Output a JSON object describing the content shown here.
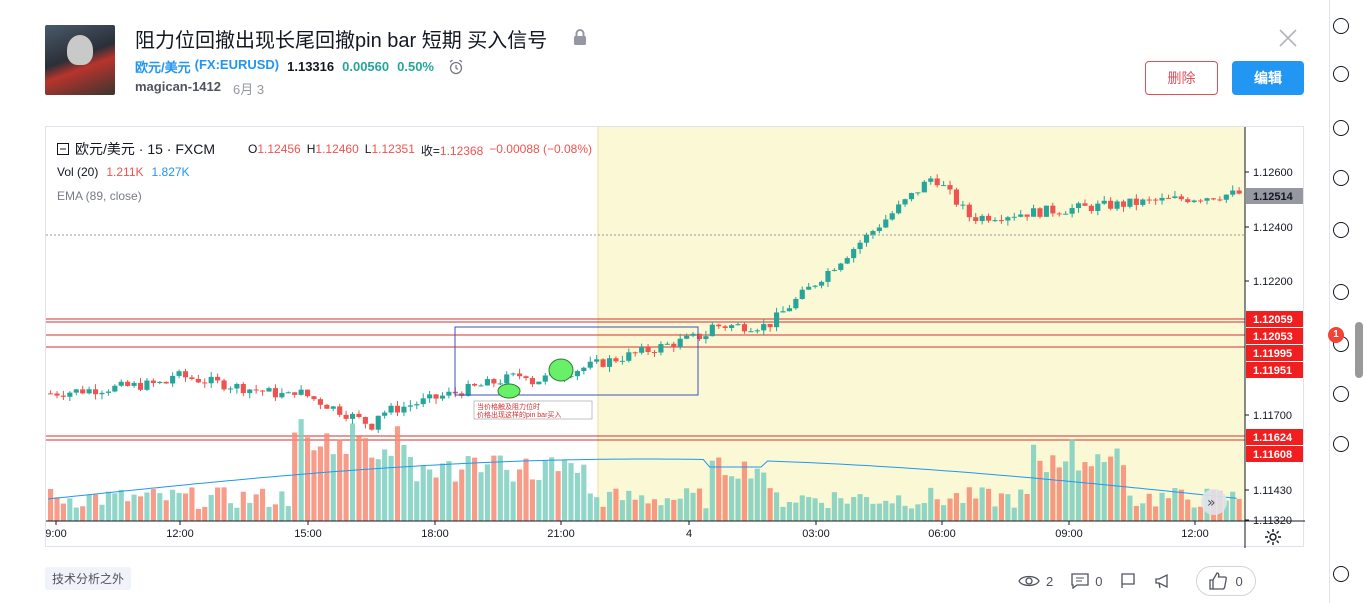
{
  "idea": {
    "title": "阻力位回撤出现长尾回撤pin bar 短期 买入信号",
    "symbol_name": "欧元/美元",
    "symbol_code": "(FX:EURUSD)",
    "price": "1.13316",
    "change": "0.00560",
    "change_pct": "0.50%",
    "author": "magican-1412",
    "date": "6月 3",
    "delete_label": "删除",
    "edit_label": "编辑"
  },
  "legend": {
    "symbol": "欧元/美元 · 15 · FXCM",
    "o_label": "O",
    "o": "1.12456",
    "h_label": "H",
    "h": "1.12460",
    "l_label": "L",
    "l": "1.12351",
    "c_label": "收=",
    "c": "1.12368",
    "chg": "−0.00088 (−0.08%)",
    "vol_label": "Vol (20)",
    "vol1": "1.211K",
    "vol2": "1.827K",
    "ema_label": "EMA (89, close)"
  },
  "chart_data": {
    "type": "candlestick",
    "x_ticks": [
      "9:00",
      "12:00",
      "15:00",
      "18:00",
      "21:00",
      "4",
      "03:00",
      "06:00",
      "09:00",
      "12:00"
    ],
    "y_ticks": [
      "1.12600",
      "1.12400",
      "1.12200",
      "1.11700",
      "1.11430",
      "1.11320"
    ],
    "price_tags": [
      {
        "value": "1.12514",
        "color": "#9598a1"
      },
      {
        "value": "1.12059",
        "color": "#f01e1e"
      },
      {
        "value": "1.12053",
        "color": "#f01e1e"
      },
      {
        "value": "1.11995",
        "color": "#f01e1e"
      },
      {
        "value": "1.11951",
        "color": "#f01e1e"
      },
      {
        "value": "1.11624",
        "color": "#f01e1e"
      },
      {
        "value": "1.11608",
        "color": "#f01e1e"
      }
    ],
    "annotation_line1": "当价格触及阻力位时",
    "annotation_line2": "价格出现这样的pin bar买入",
    "highlight_start": "21:00 + ~1h",
    "up_color": "#26a69a",
    "down_color": "#ef5350"
  },
  "footer": {
    "tag": "技术分析之外",
    "views": "2",
    "comments": "0",
    "likes": "0"
  },
  "sidebar": {
    "notification_count": "1"
  }
}
